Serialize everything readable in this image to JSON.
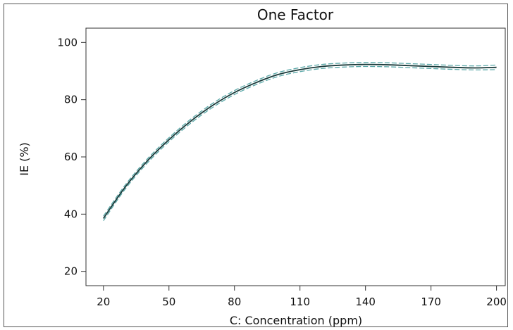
{
  "chart_data": {
    "type": "line",
    "title": "One Factor",
    "xlabel": "C: Concentration (ppm)",
    "ylabel": "IE (%)",
    "xlim": [
      12,
      204
    ],
    "ylim": [
      15,
      105
    ],
    "x_ticks": [
      20,
      50,
      80,
      110,
      140,
      170,
      200
    ],
    "y_ticks": [
      20,
      40,
      60,
      80,
      100
    ],
    "grid": false,
    "legend": "none",
    "colors": {
      "fit": "#1a3a3a",
      "band": "#5aa8a8"
    },
    "series": [
      {
        "role": "fit",
        "x": [
          20,
          30,
          40,
          50,
          60,
          70,
          80,
          90,
          100,
          110,
          120,
          130,
          140,
          150,
          160,
          170,
          180,
          190,
          200
        ],
        "y": [
          38.5,
          49.5,
          58.5,
          66.0,
          72.5,
          78.0,
          82.5,
          86.0,
          88.8,
          90.5,
          91.6,
          92.1,
          92.3,
          92.2,
          91.9,
          91.6,
          91.3,
          91.1,
          91.3
        ]
      },
      {
        "role": "upper-band",
        "x": [
          20,
          30,
          40,
          50,
          60,
          70,
          80,
          90,
          100,
          110,
          120,
          130,
          140,
          150,
          160,
          170,
          180,
          190,
          200
        ],
        "y": [
          39.3,
          50.2,
          59.2,
          66.7,
          73.2,
          78.7,
          83.2,
          86.7,
          89.5,
          91.2,
          92.3,
          92.8,
          93.0,
          92.9,
          92.6,
          92.3,
          92.0,
          91.8,
          92.1
        ]
      },
      {
        "role": "lower-band",
        "x": [
          20,
          30,
          40,
          50,
          60,
          70,
          80,
          90,
          100,
          110,
          120,
          130,
          140,
          150,
          160,
          170,
          180,
          190,
          200
        ],
        "y": [
          37.7,
          48.8,
          57.8,
          65.3,
          71.8,
          77.3,
          81.8,
          85.3,
          88.1,
          89.8,
          90.9,
          91.4,
          91.6,
          91.5,
          91.2,
          90.9,
          90.6,
          90.4,
          90.5
        ]
      }
    ]
  }
}
